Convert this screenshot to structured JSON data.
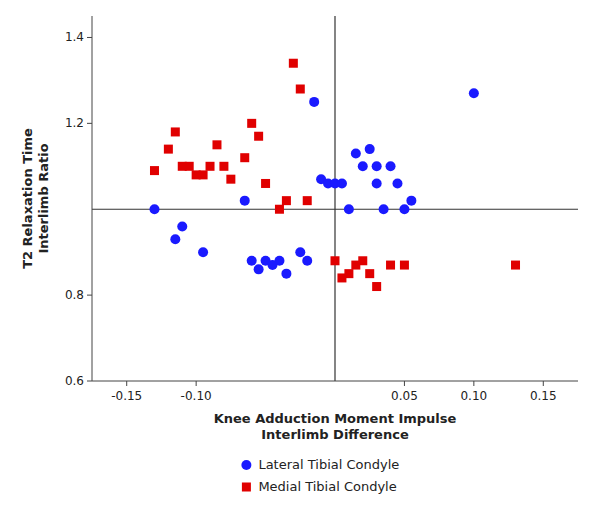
{
  "chart_data": {
    "type": "scatter",
    "xlabel": "Knee Adduction Moment Impulse\nInterlimb Difference",
    "ylabel": "T2 Relaxation Time\nInterlimb Ratio",
    "series": [
      {
        "name": "Lateral Tibial Condyle",
        "color": "#1a1aff",
        "marker": "circle",
        "x": [
          -0.13,
          -0.115,
          -0.11,
          -0.095,
          -0.065,
          -0.06,
          -0.055,
          -0.05,
          -0.045,
          -0.04,
          -0.035,
          -0.025,
          -0.02,
          -0.015,
          -0.01,
          -0.005,
          0.0,
          0.005,
          0.01,
          0.015,
          0.02,
          0.025,
          0.03,
          0.03,
          0.035,
          0.04,
          0.045,
          0.05,
          0.055,
          0.1
        ],
        "values": [
          1.0,
          0.93,
          0.96,
          0.9,
          1.02,
          0.88,
          0.86,
          0.88,
          0.87,
          0.88,
          0.85,
          0.9,
          0.88,
          1.25,
          1.07,
          1.06,
          1.06,
          1.06,
          1.0,
          1.13,
          1.1,
          1.14,
          1.06,
          1.1,
          1.0,
          1.1,
          1.06,
          1.0,
          1.02,
          1.27
        ]
      },
      {
        "name": "Medial Tibial Condyle",
        "color": "#e00000",
        "marker": "square",
        "x": [
          -0.13,
          -0.12,
          -0.115,
          -0.11,
          -0.105,
          -0.1,
          -0.095,
          -0.09,
          -0.085,
          -0.08,
          -0.075,
          -0.065,
          -0.06,
          -0.055,
          -0.05,
          -0.04,
          -0.035,
          -0.03,
          -0.025,
          -0.02,
          0.0,
          0.005,
          0.01,
          0.015,
          0.02,
          0.025,
          0.03,
          0.04,
          0.05,
          0.13
        ],
        "values": [
          1.09,
          1.14,
          1.18,
          1.1,
          1.1,
          1.08,
          1.08,
          1.1,
          1.15,
          1.1,
          1.07,
          1.12,
          1.2,
          1.17,
          1.06,
          1.0,
          1.02,
          1.34,
          1.28,
          1.02,
          0.88,
          0.84,
          0.85,
          0.87,
          0.88,
          0.85,
          0.82,
          0.87,
          0.87,
          0.87
        ]
      }
    ],
    "xlim": [
      -0.175,
      0.175
    ],
    "ylim": [
      0.6,
      1.45
    ],
    "xticks": [
      -0.15,
      {
        "value": -0.1,
        "label": "-0.10"
      },
      0.05,
      {
        "value": 0.1,
        "label": "0.10"
      },
      0.15
    ],
    "yticks": [
      0.6,
      0.8,
      1.2,
      1.4
    ],
    "hline": 1.0,
    "vline": 0.0,
    "grid": false,
    "legend": "bottom"
  }
}
